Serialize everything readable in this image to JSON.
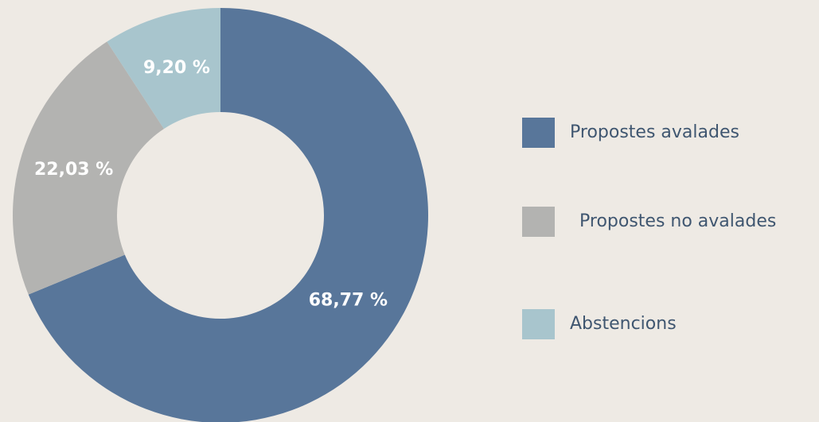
{
  "chart_data": {
    "type": "donut",
    "categories": [
      "Propostes avalades",
      "Propostes no avalades",
      "Abstencions"
    ],
    "values": [
      68.77,
      22.03,
      9.2
    ],
    "value_labels": [
      "68,77 %",
      "22,03 %",
      "9,20 %"
    ],
    "colors": [
      "#58769a",
      "#b3b3b1",
      "#a8c5cd"
    ]
  }
}
